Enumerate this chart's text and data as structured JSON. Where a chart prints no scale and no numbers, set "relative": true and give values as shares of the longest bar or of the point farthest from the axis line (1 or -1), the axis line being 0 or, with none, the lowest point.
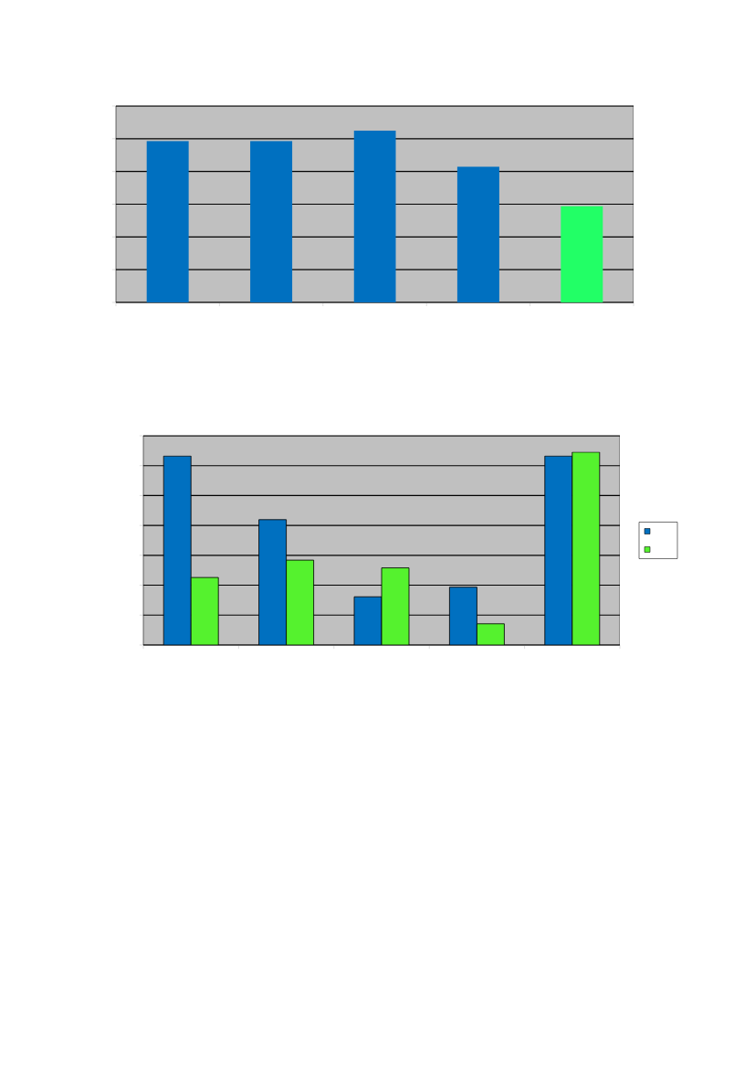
{
  "chart_data": [
    {
      "type": "bar",
      "categories": [
        null,
        null,
        null,
        null,
        null
      ],
      "values": [
        0.94,
        0.94,
        1,
        0.79,
        0.56
      ],
      "colors": [
        "#0070c0",
        "#0070c0",
        "#0070c0",
        "#0070c0",
        "#22ff66"
      ],
      "relative": true,
      "grid": "y"
    },
    {
      "type": "bar",
      "categories": [
        null,
        null,
        null,
        null,
        null
      ],
      "series": [
        {
          "color": "#0070c0",
          "values": [
            0.98,
            0.65,
            0.25,
            0.3,
            0.98
          ]
        },
        {
          "color": "#55f22e",
          "values": [
            0.35,
            0.44,
            0.4,
            0.11,
            1
          ]
        }
      ],
      "relative": true,
      "grid": "y"
    }
  ]
}
